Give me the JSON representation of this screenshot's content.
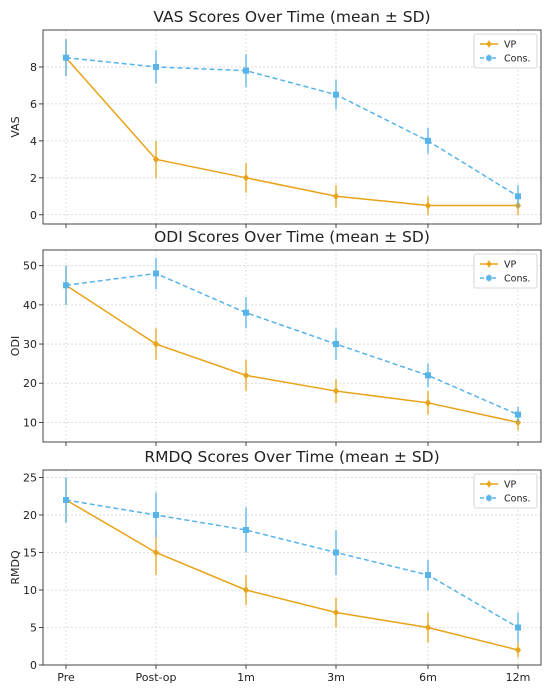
{
  "chart_data": [
    {
      "type": "line",
      "title": "VAS Scores Over Time (mean ± SD)",
      "xlabel": "",
      "ylabel": "VAS",
      "categories": [
        "Pre",
        "Post-op",
        "1m",
        "3m",
        "6m",
        "12m"
      ],
      "ylim": [
        -0.5,
        10
      ],
      "yticks": [
        0,
        2,
        4,
        6,
        8
      ],
      "grid": true,
      "legend": "top-right",
      "series": [
        {
          "name": "VP",
          "color": "#E8A317",
          "style": "solid",
          "marker": "diamond",
          "values": [
            8.5,
            3.0,
            2.0,
            1.0,
            0.5,
            0.5
          ],
          "sd": [
            1.0,
            1.0,
            0.8,
            0.6,
            0.5,
            0.5
          ]
        },
        {
          "name": "Cons.",
          "color": "#56B4E9",
          "style": "dashed",
          "marker": "square",
          "values": [
            8.5,
            8.0,
            7.8,
            6.5,
            4.0,
            1.0
          ],
          "sd": [
            1.0,
            0.9,
            0.9,
            0.8,
            0.7,
            0.6
          ]
        }
      ]
    },
    {
      "type": "line",
      "title": "ODI Scores Over Time (mean ± SD)",
      "xlabel": "",
      "ylabel": "ODI",
      "categories": [
        "Pre",
        "Post-op",
        "1m",
        "3m",
        "6m",
        "12m"
      ],
      "ylim": [
        5,
        54
      ],
      "yticks": [
        10,
        20,
        30,
        40,
        50
      ],
      "grid": true,
      "legend": "top-right",
      "series": [
        {
          "name": "VP",
          "color": "#E8A317",
          "style": "solid",
          "marker": "diamond",
          "values": [
            45,
            30,
            22,
            18,
            15,
            10
          ],
          "sd": [
            5,
            4,
            4,
            3,
            3,
            2
          ]
        },
        {
          "name": "Cons.",
          "color": "#56B4E9",
          "style": "dashed",
          "marker": "square",
          "values": [
            45,
            48,
            38,
            30,
            22,
            12
          ],
          "sd": [
            5,
            4,
            4,
            4,
            3,
            2
          ]
        }
      ]
    },
    {
      "type": "line",
      "title": "RMDQ Scores Over Time (mean ± SD)",
      "xlabel": "",
      "ylabel": "RMDQ",
      "categories": [
        "Pre",
        "Post-op",
        "1m",
        "3m",
        "6m",
        "12m"
      ],
      "ylim": [
        0,
        26
      ],
      "yticks": [
        0,
        5,
        10,
        15,
        20,
        25
      ],
      "grid": true,
      "legend": "top-right",
      "series": [
        {
          "name": "VP",
          "color": "#E8A317",
          "style": "solid",
          "marker": "diamond",
          "values": [
            22,
            15,
            10,
            7,
            5,
            2
          ],
          "sd": [
            3,
            3,
            2,
            2,
            2,
            1
          ]
        },
        {
          "name": "Cons.",
          "color": "#56B4E9",
          "style": "dashed",
          "marker": "square",
          "values": [
            22,
            20,
            18,
            15,
            12,
            5
          ],
          "sd": [
            3,
            3,
            3,
            3,
            2,
            2
          ]
        }
      ]
    }
  ]
}
